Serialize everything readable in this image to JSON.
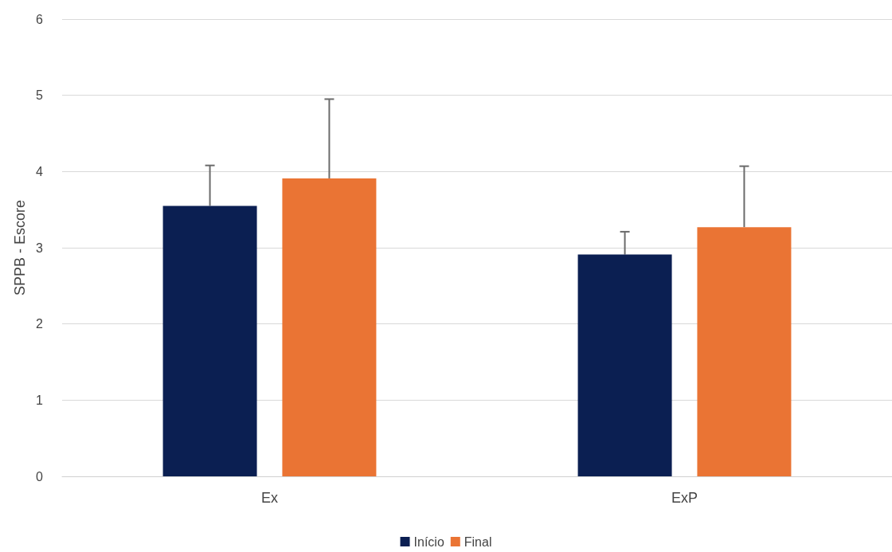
{
  "chart_data": {
    "type": "bar",
    "ylabel": "SPPB - Escore",
    "categories": [
      "Ex",
      "ExP"
    ],
    "series": [
      {
        "name": "Início",
        "color": "#0b1f52",
        "values": [
          3.55,
          2.91
        ],
        "errors": [
          [
            3.55,
            4.08
          ],
          [
            2.91,
            3.21
          ]
        ]
      },
      {
        "name": "Final",
        "color": "#ea7434",
        "values": [
          3.91,
          3.27
        ],
        "errors": [
          [
            3.91,
            4.95
          ],
          [
            3.27,
            4.07
          ]
        ]
      }
    ],
    "ylim": [
      0,
      6
    ],
    "yticks": [
      0,
      1,
      2,
      3,
      4,
      5,
      6
    ],
    "grid": "y",
    "legend": "bottom"
  }
}
